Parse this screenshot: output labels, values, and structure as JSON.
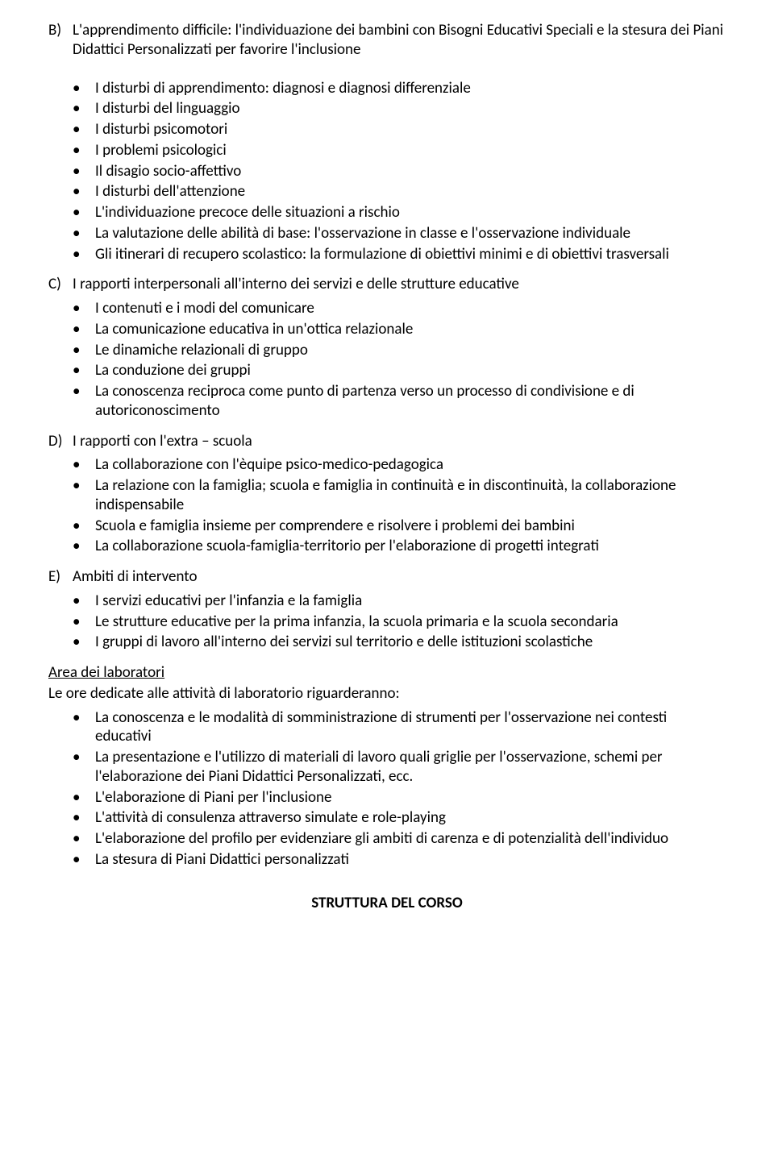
{
  "colors": {
    "text": "#000000",
    "background": "#ffffff"
  },
  "typography": {
    "font_family": "Calibri",
    "font_size_pt": 14,
    "line_height": 1.25
  },
  "sections": {
    "B": {
      "letter": "B)",
      "title": "L'apprendimento difficile: l'individuazione dei bambini con Bisogni Educativi Speciali  e la stesura dei Piani Didattici Personalizzati per favorire l'inclusione",
      "items": [
        "I disturbi di apprendimento: diagnosi e diagnosi differenziale",
        "I disturbi del linguaggio",
        "I disturbi psicomotori",
        "I problemi psicologici",
        "Il disagio socio-affettivo",
        "I disturbi dell'attenzione",
        "L'individuazione precoce delle situazioni a rischio",
        "La valutazione delle abilità di base: l'osservazione in classe e l'osservazione individuale",
        "Gli itinerari di recupero scolastico: la formulazione di obiettivi minimi e di obiettivi trasversali"
      ]
    },
    "C": {
      "letter": "C)",
      "title": "I rapporti interpersonali all'interno dei servizi e delle strutture educative",
      "items": [
        "I contenuti e i modi del comunicare",
        "La comunicazione educativa in un'ottica relazionale",
        "Le dinamiche relazionali di gruppo",
        "La conduzione dei gruppi",
        "La conoscenza reciproca come punto di partenza verso un processo di condivisione e di autoriconoscimento"
      ]
    },
    "D": {
      "letter": "D)",
      "title": "I rapporti con l'extra – scuola",
      "items": [
        "La collaborazione con l'èquipe psico-medico-pedagogica",
        "La relazione con la famiglia; scuola e famiglia  in continuità e in discontinuità, la collaborazione indispensabile",
        "Scuola e famiglia insieme per comprendere e risolvere i problemi dei bambini",
        "La collaborazione scuola-famiglia-territorio per l'elaborazione di progetti integrati"
      ]
    },
    "E": {
      "letter": "E)",
      "title": "Ambiti di intervento",
      "items": [
        "I servizi educativi per l'infanzia e la famiglia",
        "Le strutture educative per la prima infanzia, la scuola primaria e la scuola secondaria",
        "I gruppi di lavoro all'interno dei servizi sul territorio e delle istituzioni scolastiche"
      ]
    },
    "lab": {
      "heading": "Area dei laboratori",
      "intro": "Le ore dedicate alle attività di laboratorio riguarderanno:",
      "items": [
        "La conoscenza e le modalità di somministrazione di strumenti per l'osservazione nei contesti educativi",
        "La presentazione e l'utilizzo di materiali di lavoro quali griglie per l'osservazione, schemi per l'elaborazione dei Piani  Didattici Personalizzati, ecc.",
        "L'elaborazione di Piani per l'inclusione",
        "L'attività di consulenza attraverso simulate e role-playing",
        "L'elaborazione del profilo per evidenziare gli ambiti di carenza e di potenzialità dell'individuo",
        "La stesura di Piani Didattici personalizzati"
      ]
    },
    "footer": "STRUTTURA DEL CORSO"
  }
}
